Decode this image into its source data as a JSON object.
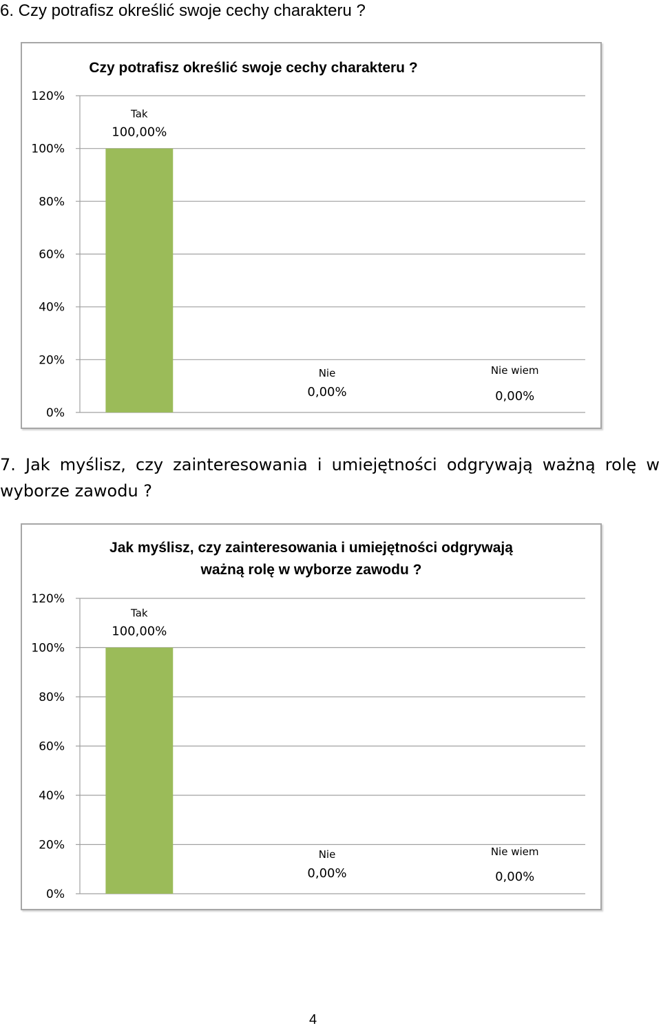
{
  "headings": {
    "q6": "6. Czy potrafisz określić swoje cechy charakteru  ?",
    "q7": "7. Jak myślisz, czy zainteresowania i umiejętności odgrywają ważną rolę w wyborze zawodu ?"
  },
  "page_number": "4",
  "chart_data": [
    {
      "type": "bar",
      "title": "Czy potrafisz określić swoje cechy charakteru ?",
      "categories": [
        "Tak",
        "Nie",
        "Nie wiem"
      ],
      "values": [
        100,
        0,
        0
      ],
      "value_labels": [
        "100,00%",
        "0,00%",
        "0,00%"
      ],
      "yticks": [
        "0%",
        "20%",
        "40%",
        "60%",
        "80%",
        "100%",
        "120%"
      ],
      "ylim": [
        0,
        120
      ],
      "xlabel": "",
      "ylabel": "",
      "grid": true,
      "legend": "none",
      "bar_color": "#9bbb59"
    },
    {
      "type": "bar",
      "title": "Jak myślisz, czy zainteresowania i umiejętności odgrywają ważną rolę w wyborze zawodu ?",
      "title_lines": [
        "Jak myślisz, czy zainteresowania i umiejętności odgrywają",
        "ważną rolę w wyborze zawodu ?"
      ],
      "categories": [
        "Tak",
        "Nie",
        "Nie wiem"
      ],
      "values": [
        100,
        0,
        0
      ],
      "value_labels": [
        "100,00%",
        "0,00%",
        "0,00%"
      ],
      "yticks": [
        "0%",
        "20%",
        "40%",
        "60%",
        "80%",
        "100%",
        "120%"
      ],
      "ylim": [
        0,
        120
      ],
      "xlabel": "",
      "ylabel": "",
      "grid": true,
      "legend": "none",
      "bar_color": "#9bbb59"
    }
  ]
}
